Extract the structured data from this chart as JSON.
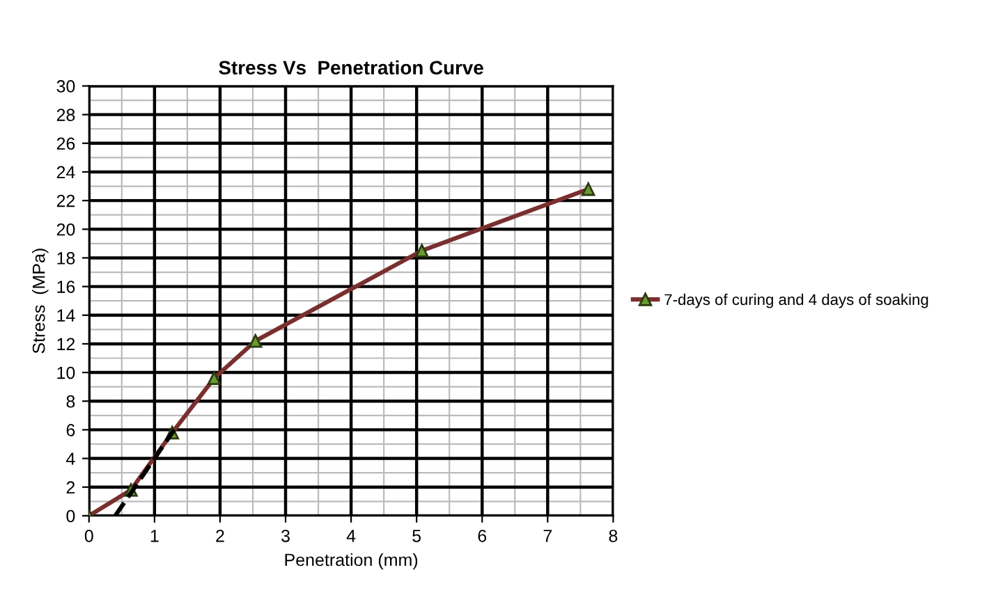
{
  "chart_data": {
    "type": "line",
    "title": "Stress Vs  Penetration Curve",
    "xlabel": "Penetration (mm)",
    "ylabel": "Stress  (MPa)",
    "xlim": [
      0,
      8
    ],
    "xticks": [
      0,
      1,
      2,
      3,
      4,
      5,
      6,
      7,
      8
    ],
    "ylim": [
      0,
      30
    ],
    "yticks": [
      0,
      2,
      4,
      6,
      8,
      10,
      12,
      14,
      16,
      18,
      20,
      22,
      24,
      26,
      28,
      30
    ],
    "grid": true,
    "legend": "right",
    "series": [
      {
        "name": "7-days of curing and 4 days of soaking",
        "color": "#7a2f2f",
        "marker": "triangle",
        "line_style": "solid",
        "x": [
          0,
          0.64,
          1.27,
          1.91,
          2.54,
          5.08,
          7.62
        ],
        "values": [
          0,
          1.8,
          5.8,
          9.6,
          12.2,
          18.5,
          22.8
        ]
      },
      {
        "color": "#000000",
        "marker": "none",
        "line_style": "dashed",
        "x": [
          0.4,
          1.3
        ],
        "values": [
          0,
          6
        ]
      }
    ]
  }
}
